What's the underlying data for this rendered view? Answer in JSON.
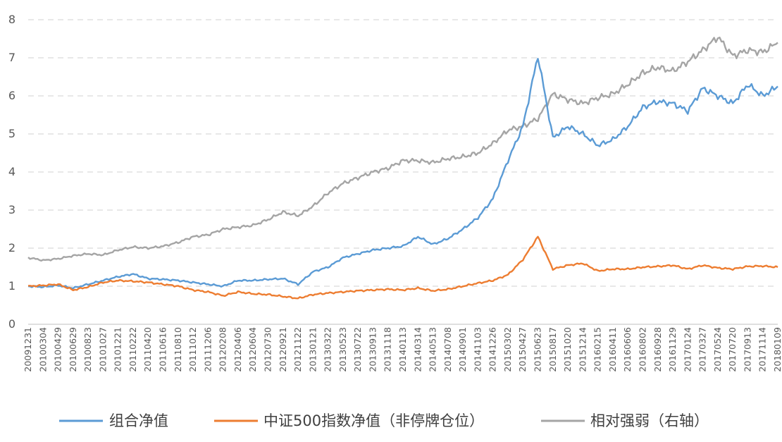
{
  "chart_data": {
    "type": "line",
    "title": "",
    "xlabel": "",
    "ylabel": "",
    "ylim": [
      0,
      8
    ],
    "yticks": [
      "0",
      "1",
      "2",
      "3",
      "4",
      "5",
      "6",
      "7",
      "8"
    ],
    "grid": "horizontal-dashed",
    "legend_position": "bottom",
    "x": [
      "20091231",
      "20100304",
      "20100429",
      "20100629",
      "20100823",
      "20101027",
      "20101221",
      "20110222",
      "20110420",
      "20110616",
      "20110810",
      "20111012",
      "20111206",
      "20120208",
      "20120406",
      "20120604",
      "20120730",
      "20120921",
      "20121122",
      "20130121",
      "20130322",
      "20130523",
      "20130722",
      "20130913",
      "20131118",
      "20140113",
      "20140314",
      "20140513",
      "20140708",
      "20140901",
      "20141103",
      "20141226",
      "20150302",
      "20150427",
      "20150623",
      "20150817",
      "20151020",
      "20151214",
      "20160215",
      "20160411",
      "20160606",
      "20160802",
      "20160928",
      "20161129",
      "20170124",
      "20170327",
      "20170524",
      "20170720",
      "20170913",
      "20171114",
      "20180109"
    ],
    "series": [
      {
        "name": "组合净值",
        "color": "#5B9BD5",
        "values": [
          1.0,
          0.98,
          1.02,
          0.95,
          1.05,
          1.15,
          1.25,
          1.32,
          1.2,
          1.18,
          1.15,
          1.1,
          1.05,
          1.0,
          1.15,
          1.15,
          1.18,
          1.2,
          1.05,
          1.38,
          1.5,
          1.75,
          1.85,
          1.95,
          2.0,
          2.05,
          2.3,
          2.1,
          2.25,
          2.5,
          2.8,
          3.3,
          4.3,
          5.2,
          7.05,
          4.9,
          5.2,
          5.0,
          4.7,
          4.85,
          5.2,
          5.7,
          5.85,
          5.8,
          5.6,
          6.2,
          6.0,
          5.8,
          6.3,
          6.0,
          6.25
        ]
      },
      {
        "name": "中证500指数净值（非停牌仓位）",
        "color": "#ED7D31",
        "values": [
          1.0,
          1.02,
          1.05,
          0.9,
          0.98,
          1.1,
          1.15,
          1.13,
          1.1,
          1.05,
          1.0,
          0.9,
          0.85,
          0.75,
          0.85,
          0.8,
          0.78,
          0.73,
          0.68,
          0.78,
          0.82,
          0.85,
          0.88,
          0.9,
          0.92,
          0.9,
          0.95,
          0.88,
          0.92,
          1.0,
          1.08,
          1.15,
          1.3,
          1.7,
          2.3,
          1.45,
          1.55,
          1.6,
          1.4,
          1.45,
          1.45,
          1.5,
          1.52,
          1.55,
          1.45,
          1.55,
          1.48,
          1.45,
          1.52,
          1.53,
          1.5
        ]
      },
      {
        "name": "相对强弱（右轴）",
        "color": "#A5A5A5",
        "values": [
          1.75,
          1.68,
          1.72,
          1.8,
          1.85,
          1.82,
          1.95,
          2.03,
          2.0,
          2.05,
          2.15,
          2.3,
          2.35,
          2.5,
          2.55,
          2.6,
          2.75,
          2.95,
          2.85,
          3.1,
          3.45,
          3.7,
          3.85,
          4.0,
          4.1,
          4.3,
          4.3,
          4.25,
          4.35,
          4.4,
          4.5,
          4.75,
          5.1,
          5.2,
          5.4,
          6.05,
          5.9,
          5.8,
          5.95,
          6.05,
          6.3,
          6.6,
          6.75,
          6.65,
          6.9,
          7.2,
          7.55,
          7.05,
          7.2,
          7.15,
          7.4
        ]
      }
    ]
  }
}
